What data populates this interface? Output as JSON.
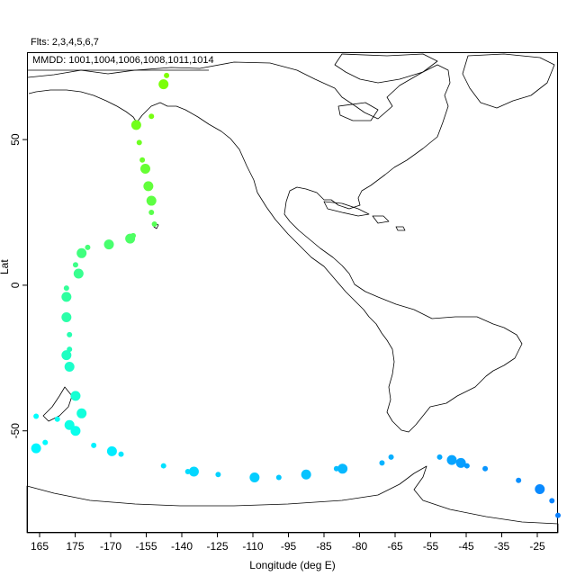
{
  "header": {
    "flights": "Flts: 2,3,4,5,6,7",
    "dates": "MMDD: 1001,1004,1006,1008,1011,1014"
  },
  "chart_data": {
    "type": "map-track",
    "xlabel": "Longitude (deg E)",
    "ylabel": "Lat",
    "x_ticks": [
      "165",
      "175",
      "-170",
      "-155",
      "-140",
      "-125",
      "-110",
      "-95",
      "-85",
      "-80",
      "-65",
      "-55",
      "-45",
      "-35",
      "-25"
    ],
    "y_ticks": [
      -50,
      0,
      50
    ],
    "xlim_deg_east": [
      160,
      335
    ],
    "ylim": [
      -85,
      80
    ],
    "legend": "none",
    "grid": false,
    "track": [
      {
        "lon": -154,
        "lat": 72,
        "size": 1
      },
      {
        "lon": -155,
        "lat": 69,
        "size": 2
      },
      {
        "lon": -159,
        "lat": 58,
        "size": 1
      },
      {
        "lon": -164,
        "lat": 55,
        "size": 2
      },
      {
        "lon": -163,
        "lat": 49,
        "size": 1
      },
      {
        "lon": -162,
        "lat": 43,
        "size": 1
      },
      {
        "lon": -161,
        "lat": 40,
        "size": 2
      },
      {
        "lon": -160,
        "lat": 34,
        "size": 2
      },
      {
        "lon": -159,
        "lat": 29,
        "size": 2
      },
      {
        "lon": -159,
        "lat": 25,
        "size": 1
      },
      {
        "lon": -158,
        "lat": 21,
        "size": 1
      },
      {
        "lon": -165,
        "lat": 17,
        "size": 1
      },
      {
        "lon": -166,
        "lat": 16,
        "size": 2
      },
      {
        "lon": -173,
        "lat": 14,
        "size": 2
      },
      {
        "lon": -180,
        "lat": 13,
        "size": 1
      },
      {
        "lon": 178,
        "lat": 11,
        "size": 2
      },
      {
        "lon": 176,
        "lat": 7,
        "size": 1
      },
      {
        "lon": 177,
        "lat": 4,
        "size": 2
      },
      {
        "lon": 173,
        "lat": -1,
        "size": 1
      },
      {
        "lon": 173,
        "lat": -4,
        "size": 2
      },
      {
        "lon": 173,
        "lat": -11,
        "size": 2
      },
      {
        "lon": 174,
        "lat": -17,
        "size": 1
      },
      {
        "lon": 174,
        "lat": -22,
        "size": 1
      },
      {
        "lon": 173,
        "lat": -24,
        "size": 2
      },
      {
        "lon": 174,
        "lat": -28,
        "size": 2
      },
      {
        "lon": 176,
        "lat": -38,
        "size": 2
      },
      {
        "lon": 178,
        "lat": -44,
        "size": 2
      },
      {
        "lon": 174,
        "lat": -48,
        "size": 2
      },
      {
        "lon": 176,
        "lat": -50,
        "size": 2
      },
      {
        "lon": 170,
        "lat": -46,
        "size": 1
      },
      {
        "lon": 163,
        "lat": -45,
        "size": 1
      },
      {
        "lon": 166,
        "lat": -54,
        "size": 1
      },
      {
        "lon": 163,
        "lat": -56,
        "size": 2
      },
      {
        "lon": -178,
        "lat": -55,
        "size": 1
      },
      {
        "lon": -172,
        "lat": -57,
        "size": 2
      },
      {
        "lon": -169,
        "lat": -58,
        "size": 1
      },
      {
        "lon": -155,
        "lat": -62,
        "size": 1
      },
      {
        "lon": -147,
        "lat": -64,
        "size": 1
      },
      {
        "lon": -145,
        "lat": -64,
        "size": 2
      },
      {
        "lon": -137,
        "lat": -65,
        "size": 1
      },
      {
        "lon": -125,
        "lat": -66,
        "size": 2
      },
      {
        "lon": -117,
        "lat": -66,
        "size": 1
      },
      {
        "lon": -108,
        "lat": -65,
        "size": 2
      },
      {
        "lon": -98,
        "lat": -63,
        "size": 1
      },
      {
        "lon": -96,
        "lat": -63,
        "size": 2
      },
      {
        "lon": -83,
        "lat": -61,
        "size": 1
      },
      {
        "lon": -80,
        "lat": -59,
        "size": 1
      },
      {
        "lon": -64,
        "lat": -59,
        "size": 1
      },
      {
        "lon": -60,
        "lat": -60,
        "size": 2
      },
      {
        "lon": -57,
        "lat": -61,
        "size": 2
      },
      {
        "lon": -55,
        "lat": -62,
        "size": 1
      },
      {
        "lon": -49,
        "lat": -63,
        "size": 1
      },
      {
        "lon": -38,
        "lat": -67,
        "size": 1
      },
      {
        "lon": -31,
        "lat": -70,
        "size": 2
      },
      {
        "lon": -27,
        "lat": -74,
        "size": 1
      },
      {
        "lon": -25,
        "lat": -79,
        "size": 1
      }
    ]
  },
  "colors": {
    "track_start": "#7fff00",
    "track_mid": "#00ffff",
    "track_end": "#0a80ff",
    "coast": "#000000"
  }
}
